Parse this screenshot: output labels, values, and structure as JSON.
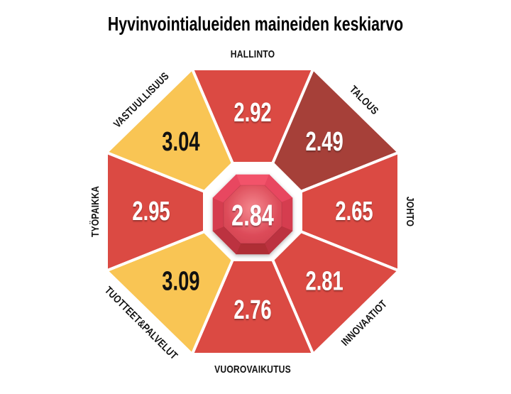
{
  "title": "Hyvinvointialueiden maineiden keskiarvo",
  "chart_data": {
    "type": "pie",
    "variant": "octagon-segment-wheel",
    "title": "Hyvinvointialueiden maineiden keskiarvo",
    "legend_position": "none",
    "grid": false,
    "categories": [
      "HALLINTO",
      "TALOUS",
      "JOHTO",
      "INNOVAATIOT",
      "VUOROVAIKUTUS",
      "TUOTTEET&PALVELUT",
      "TYÖPAIKKA",
      "VASTUULLISUUS"
    ],
    "values": [
      2.92,
      2.49,
      2.65,
      2.81,
      2.76,
      3.09,
      2.95,
      3.04
    ],
    "segments": [
      {
        "label": "HALLINTO",
        "value": 2.92,
        "color": "#DB4A43",
        "value_color": "#FFFFFF"
      },
      {
        "label": "TALOUS",
        "value": 2.49,
        "color": "#A64039",
        "value_color": "#FFFFFF"
      },
      {
        "label": "JOHTO",
        "value": 2.65,
        "color": "#DB4A43",
        "value_color": "#FFFFFF"
      },
      {
        "label": "INNOVAATIOT",
        "value": 2.81,
        "color": "#DB4A43",
        "value_color": "#FFFFFF"
      },
      {
        "label": "VUOROVAIKUTUS",
        "value": 2.76,
        "color": "#DB4A43",
        "value_color": "#FFFFFF"
      },
      {
        "label": "TUOTTEET&PALVELUT",
        "value": 3.09,
        "color": "#F9C554",
        "value_color": "#111111"
      },
      {
        "label": "TYÖPAIKKA",
        "value": 2.95,
        "color": "#DB4A43",
        "value_color": "#FFFFFF"
      },
      {
        "label": "VASTUULLISUUS",
        "value": 3.04,
        "color": "#F9C554",
        "value_color": "#111111"
      }
    ],
    "center": {
      "value": 2.84,
      "value_color": "#FFFFFF",
      "facet_colors": [
        "#F2536B",
        "#E84760",
        "#D53D4F",
        "#BC333F",
        "#AF2E36",
        "#BC333F",
        "#D53D4F",
        "#E84760"
      ],
      "face_gradient": [
        "#F5898F",
        "#DD4C5A",
        "#CE3D4C"
      ]
    },
    "palette": {
      "red": "#DB4A43",
      "dark_red": "#A64039",
      "yellow": "#F9C554",
      "gap_white": "#FFFFFF",
      "label_black": "#111111",
      "background": "#FFFFFF"
    }
  }
}
